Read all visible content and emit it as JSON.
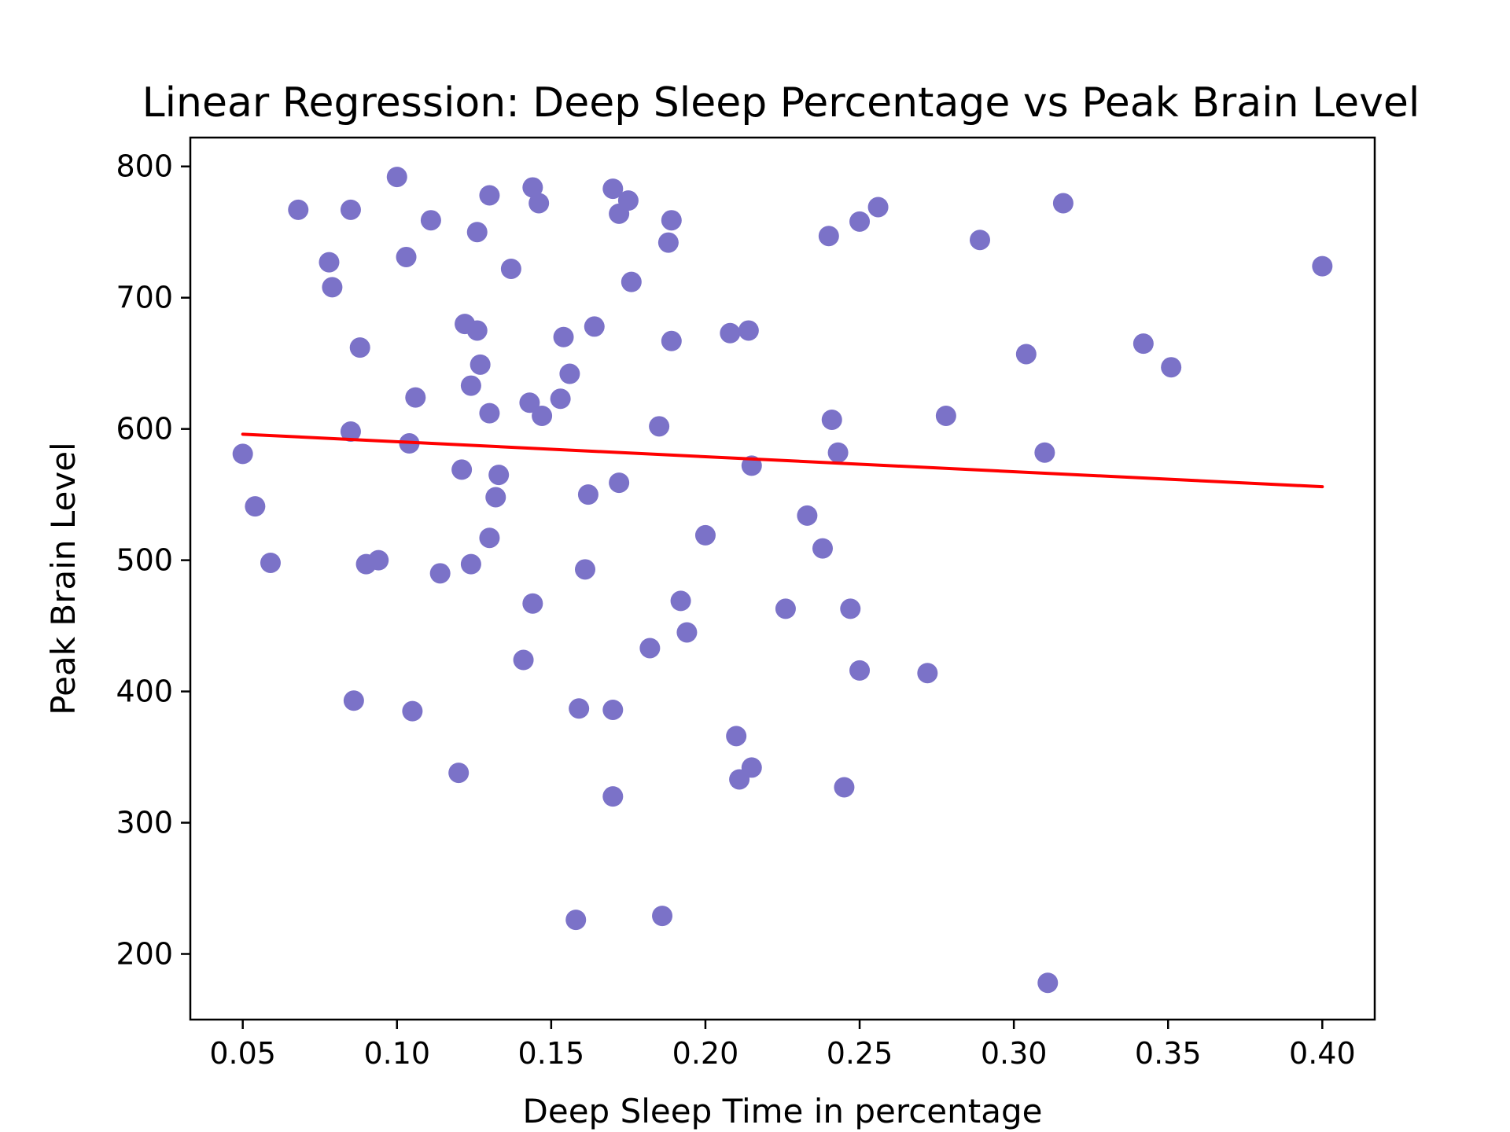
{
  "chart_data": {
    "type": "scatter",
    "title": "Linear Regression: Deep Sleep Percentage vs Peak Brain Level",
    "xlabel": "Deep Sleep Time in percentage",
    "ylabel": "Peak Brain Level",
    "xlim": [
      0.033,
      0.417
    ],
    "ylim": [
      150,
      822
    ],
    "x_ticks": [
      {
        "value": 0.05,
        "label": "0.05"
      },
      {
        "value": 0.1,
        "label": "0.10"
      },
      {
        "value": 0.15,
        "label": "0.15"
      },
      {
        "value": 0.2,
        "label": "0.20"
      },
      {
        "value": 0.25,
        "label": "0.25"
      },
      {
        "value": 0.3,
        "label": "0.30"
      },
      {
        "value": 0.35,
        "label": "0.35"
      },
      {
        "value": 0.4,
        "label": "0.40"
      }
    ],
    "y_ticks": [
      {
        "value": 200,
        "label": "200"
      },
      {
        "value": 300,
        "label": "300"
      },
      {
        "value": 400,
        "label": "400"
      },
      {
        "value": 500,
        "label": "500"
      },
      {
        "value": 600,
        "label": "600"
      },
      {
        "value": 700,
        "label": "700"
      },
      {
        "value": 800,
        "label": "800"
      }
    ],
    "grid": false,
    "point_color": "#7b72c8",
    "line_color": "#ff0000",
    "points": [
      [
        0.05,
        581
      ],
      [
        0.054,
        541
      ],
      [
        0.059,
        498
      ],
      [
        0.068,
        767
      ],
      [
        0.078,
        727
      ],
      [
        0.079,
        708
      ],
      [
        0.085,
        767
      ],
      [
        0.085,
        598
      ],
      [
        0.086,
        393
      ],
      [
        0.088,
        662
      ],
      [
        0.09,
        497
      ],
      [
        0.094,
        500
      ],
      [
        0.1,
        792
      ],
      [
        0.103,
        731
      ],
      [
        0.104,
        589
      ],
      [
        0.105,
        385
      ],
      [
        0.106,
        624
      ],
      [
        0.111,
        759
      ],
      [
        0.114,
        490
      ],
      [
        0.12,
        338
      ],
      [
        0.121,
        569
      ],
      [
        0.122,
        680
      ],
      [
        0.124,
        633
      ],
      [
        0.124,
        497
      ],
      [
        0.126,
        750
      ],
      [
        0.126,
        675
      ],
      [
        0.127,
        649
      ],
      [
        0.13,
        778
      ],
      [
        0.13,
        612
      ],
      [
        0.13,
        517
      ],
      [
        0.132,
        548
      ],
      [
        0.133,
        565
      ],
      [
        0.137,
        722
      ],
      [
        0.141,
        424
      ],
      [
        0.143,
        620
      ],
      [
        0.144,
        784
      ],
      [
        0.144,
        467
      ],
      [
        0.146,
        772
      ],
      [
        0.147,
        610
      ],
      [
        0.153,
        623
      ],
      [
        0.154,
        670
      ],
      [
        0.156,
        642
      ],
      [
        0.158,
        226
      ],
      [
        0.159,
        387
      ],
      [
        0.161,
        493
      ],
      [
        0.162,
        550
      ],
      [
        0.164,
        678
      ],
      [
        0.17,
        783
      ],
      [
        0.17,
        386
      ],
      [
        0.17,
        320
      ],
      [
        0.172,
        764
      ],
      [
        0.172,
        559
      ],
      [
        0.175,
        774
      ],
      [
        0.176,
        712
      ],
      [
        0.182,
        433
      ],
      [
        0.185,
        602
      ],
      [
        0.186,
        229
      ],
      [
        0.188,
        742
      ],
      [
        0.189,
        759
      ],
      [
        0.189,
        667
      ],
      [
        0.192,
        469
      ],
      [
        0.194,
        445
      ],
      [
        0.2,
        519
      ],
      [
        0.208,
        673
      ],
      [
        0.21,
        366
      ],
      [
        0.211,
        333
      ],
      [
        0.214,
        675
      ],
      [
        0.215,
        342
      ],
      [
        0.215,
        572
      ],
      [
        0.226,
        463
      ],
      [
        0.233,
        534
      ],
      [
        0.238,
        509
      ],
      [
        0.24,
        747
      ],
      [
        0.241,
        607
      ],
      [
        0.243,
        582
      ],
      [
        0.245,
        327
      ],
      [
        0.247,
        463
      ],
      [
        0.25,
        758
      ],
      [
        0.25,
        416
      ],
      [
        0.256,
        769
      ],
      [
        0.272,
        414
      ],
      [
        0.278,
        610
      ],
      [
        0.289,
        744
      ],
      [
        0.304,
        657
      ],
      [
        0.31,
        582
      ],
      [
        0.311,
        178
      ],
      [
        0.316,
        772
      ],
      [
        0.342,
        665
      ],
      [
        0.351,
        647
      ],
      [
        0.4,
        724
      ]
    ],
    "regression_line": {
      "x": [
        0.05,
        0.4
      ],
      "y": [
        596,
        556
      ]
    }
  }
}
